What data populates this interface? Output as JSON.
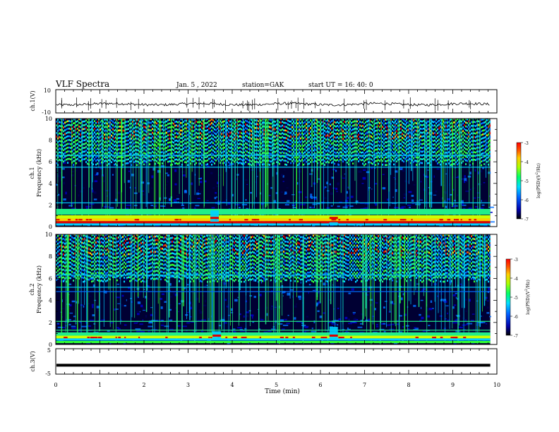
{
  "header": {
    "title": "VLF Spectra",
    "date": "Jan. 5 , 2022",
    "station": "station=GAK",
    "start": "start UT = 16: 40: 0"
  },
  "chart_data": [
    {
      "type": "line",
      "panel": "ch1-waveform",
      "ylabel": "ch.1(V)",
      "ylim": [
        -10,
        10
      ],
      "y_ticklabels": [
        "10",
        "-10"
      ],
      "series": [
        {
          "mean": 0,
          "approx_range": [
            -3,
            3
          ]
        }
      ]
    },
    {
      "type": "heatmap",
      "panel": "ch1-spectrogram",
      "ylabel": "ch.1\nFrequency (kHz)",
      "ylim": [
        0,
        10
      ],
      "y_ticklabels": [
        "0",
        "2",
        "4",
        "6",
        "8",
        "10"
      ],
      "colorbar": {
        "label": "log(PSD)(V²/Hz)",
        "range": [
          -7,
          -3
        ],
        "ticklabels": [
          "-3",
          "-4",
          "-5",
          "-6",
          "-7"
        ]
      }
    },
    {
      "type": "heatmap",
      "panel": "ch2-spectrogram",
      "ylabel": "ch.2\nFrequency (kHz)",
      "ylim": [
        0,
        10
      ],
      "y_ticklabels": [
        "0",
        "2",
        "4",
        "6",
        "8",
        "10"
      ],
      "colorbar": {
        "label": "log(PSD)(V²/Hz)",
        "range": [
          -7,
          -3
        ],
        "ticklabels": [
          "-3",
          "-4",
          "-5",
          "-6",
          "-7"
        ]
      }
    },
    {
      "type": "line",
      "panel": "ch3-waveform",
      "ylabel": "ch.3(V)",
      "ylim": [
        -5,
        5
      ],
      "y_ticklabels": [
        "5",
        "-5"
      ],
      "series": [
        {
          "mean": -1.5
        }
      ]
    }
  ],
  "xaxis": {
    "label": "Time (min)",
    "range": [
      0,
      10
    ],
    "ticks": [
      "0",
      "1",
      "2",
      "3",
      "4",
      "5",
      "6",
      "7",
      "8",
      "9",
      "10"
    ],
    "data_end": 9.85
  },
  "colors": {
    "dark": "#000033",
    "colormap": [
      "#000055",
      "#0000cc",
      "#0070ff",
      "#00d0ff",
      "#22ee88",
      "#33ff33",
      "#ccff00",
      "#ffcc00",
      "#ff5500",
      "#dd0000"
    ]
  }
}
